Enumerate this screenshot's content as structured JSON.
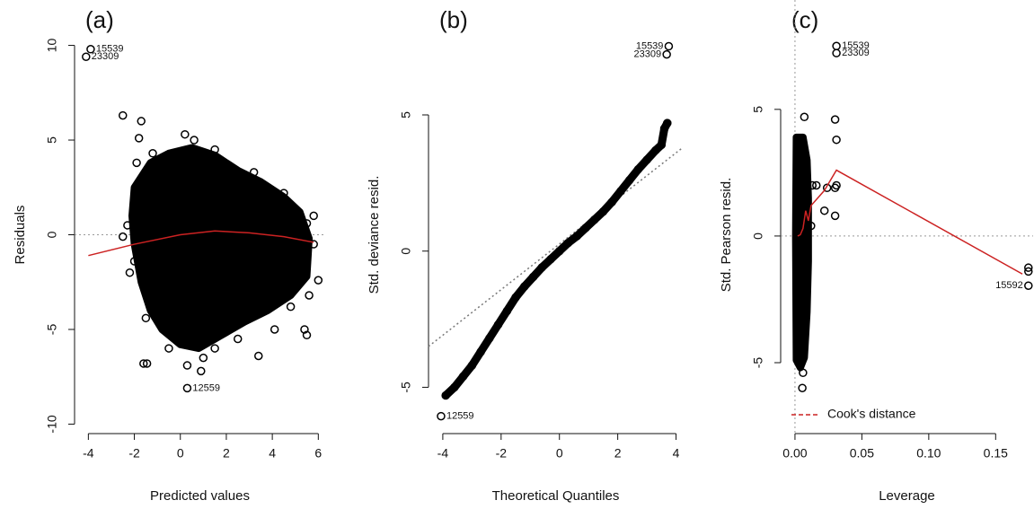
{
  "chart_data": [
    {
      "type": "scatter",
      "title": "(a)",
      "x_label": "Predicted values",
      "y_label": "Residuals",
      "xlim": [
        -4.6,
        6.3
      ],
      "ylim": [
        -10.5,
        10.5
      ],
      "xticks": [
        -4,
        -2,
        0,
        2,
        4,
        6
      ],
      "yticks": [
        -10,
        -5,
        0,
        5,
        10
      ],
      "hline": 0,
      "dense_region": {
        "x": [
          -2.0,
          -1.3,
          -0.5,
          0.5,
          1.5,
          2.5,
          3.5,
          4.5,
          5.2,
          5.6,
          5.5,
          4.8,
          3.8,
          2.8,
          1.8,
          0.8,
          0,
          -0.8,
          -1.3,
          -1.7,
          -2.0,
          -2.1
        ],
        "y": [
          2.5,
          3.8,
          4.3,
          4.6,
          4.2,
          3.4,
          2.8,
          2.0,
          1.2,
          -0.2,
          -2.2,
          -3.2,
          -4.0,
          -4.6,
          -5.3,
          -6.0,
          -5.8,
          -5.0,
          -4.0,
          -2.5,
          -0.5,
          1.0
        ]
      },
      "points": [
        {
          "x": -3.9,
          "y": 9.8,
          "label": "15539"
        },
        {
          "x": -4.1,
          "y": 9.4,
          "label": "23309"
        },
        {
          "x": -2.5,
          "y": 6.3
        },
        {
          "x": -1.7,
          "y": 6.0
        },
        {
          "x": -1.8,
          "y": 5.1
        },
        {
          "x": -1.9,
          "y": 3.8
        },
        {
          "x": -2.3,
          "y": 0.5
        },
        {
          "x": -2.5,
          "y": -0.1
        },
        {
          "x": -2.0,
          "y": -1.4
        },
        {
          "x": -1.4,
          "y": -3.2
        },
        {
          "x": -1.6,
          "y": -6.8
        },
        {
          "x": -1.45,
          "y": -6.8
        },
        {
          "x": -0.2,
          "y": -5.5
        },
        {
          "x": 0.3,
          "y": -6.9
        },
        {
          "x": 0.9,
          "y": -7.2
        },
        {
          "x": 0.3,
          "y": -8.1,
          "label": "12559"
        },
        {
          "x": 3.4,
          "y": -6.4
        },
        {
          "x": 4.1,
          "y": -5.0
        },
        {
          "x": 5.4,
          "y": -5.0
        },
        {
          "x": 5.5,
          "y": -5.3
        },
        {
          "x": 6.0,
          "y": -2.4
        },
        {
          "x": 5.8,
          "y": -0.5
        },
        {
          "x": 5.5,
          "y": 0.6
        },
        {
          "x": 5.8,
          "y": 1.0
        },
        {
          "x": 0.2,
          "y": 5.3
        },
        {
          "x": 0.6,
          "y": 5.0
        },
        {
          "x": 1.5,
          "y": 4.5
        },
        {
          "x": 3.2,
          "y": 3.3
        },
        {
          "x": 4.5,
          "y": 2.2
        },
        {
          "x": -1.2,
          "y": 4.3
        },
        {
          "x": 2.5,
          "y": -5.5
        },
        {
          "x": 1.5,
          "y": -6.0
        },
        {
          "x": -0.5,
          "y": -6.0
        },
        {
          "x": 4.8,
          "y": -3.8
        },
        {
          "x": 5.6,
          "y": -3.2
        },
        {
          "x": -1.5,
          "y": -4.4
        },
        {
          "x": -2.2,
          "y": -2.0
        },
        {
          "x": 1.0,
          "y": -6.5
        }
      ],
      "smooth": {
        "color": "#cc2222",
        "x": [
          -4,
          -2,
          0,
          1.5,
          3,
          4.5,
          5.8
        ],
        "y": [
          -1.1,
          -0.5,
          0,
          0.2,
          0.1,
          -0.1,
          -0.4
        ]
      }
    },
    {
      "type": "qq",
      "title": "(b)",
      "x_label": "Theoretical Quantiles",
      "y_label": "Std. deviance resid.",
      "xlim": [
        -4.49,
        4.23
      ],
      "ylim": [
        -6.7,
        7.9
      ],
      "xticks": [
        -4,
        -2,
        0,
        2,
        4
      ],
      "yticks": [
        -5,
        0,
        5
      ],
      "reference_line": {
        "x": [
          -4.49,
          4.23
        ],
        "y": [
          -3.5,
          3.8
        ]
      },
      "points": [
        {
          "x": -3.9,
          "y": -5.3
        },
        {
          "x": -3.6,
          "y": -5.0
        },
        {
          "x": -3.3,
          "y": -4.6
        },
        {
          "x": -3.0,
          "y": -4.2
        },
        {
          "x": -2.7,
          "y": -3.7
        },
        {
          "x": -2.4,
          "y": -3.2
        },
        {
          "x": -2.1,
          "y": -2.7
        },
        {
          "x": -1.8,
          "y": -2.2
        },
        {
          "x": -1.5,
          "y": -1.7
        },
        {
          "x": -1.2,
          "y": -1.3
        },
        {
          "x": -0.9,
          "y": -0.95
        },
        {
          "x": -0.6,
          "y": -0.6
        },
        {
          "x": -0.3,
          "y": -0.3
        },
        {
          "x": 0,
          "y": 0
        },
        {
          "x": 0.3,
          "y": 0.3
        },
        {
          "x": 0.6,
          "y": 0.55
        },
        {
          "x": 0.9,
          "y": 0.85
        },
        {
          "x": 1.2,
          "y": 1.15
        },
        {
          "x": 1.5,
          "y": 1.45
        },
        {
          "x": 1.8,
          "y": 1.8
        },
        {
          "x": 2.1,
          "y": 2.2
        },
        {
          "x": 2.4,
          "y": 2.6
        },
        {
          "x": 2.7,
          "y": 3.0
        },
        {
          "x": 3.0,
          "y": 3.35
        },
        {
          "x": 3.3,
          "y": 3.7
        },
        {
          "x": 3.5,
          "y": 3.9
        },
        {
          "x": 3.6,
          "y": 4.5
        },
        {
          "x": 3.7,
          "y": 4.7
        },
        {
          "x": 3.75,
          "y": 7.52,
          "label": "15539"
        },
        {
          "x": 3.68,
          "y": 7.22,
          "label": "23309"
        },
        {
          "x": -4.06,
          "y": -6.06,
          "label": "12559"
        }
      ]
    },
    {
      "type": "scatter",
      "title": "(c)",
      "x_label": "Leverage",
      "y_label": "Std. Pearson resid.",
      "xlim": [
        -0.0107,
        0.178
      ],
      "ylim": [
        -7.8,
        7.9
      ],
      "xticks": [
        {
          "value": 0,
          "label": "0.00"
        },
        {
          "value": 0.05,
          "label": "0.05"
        },
        {
          "value": 0.1,
          "label": "0.10"
        },
        {
          "value": 0.15,
          "label": "0.15"
        }
      ],
      "yticks": [
        -5,
        0,
        5
      ],
      "hline": 0,
      "vline": 0,
      "dense_region": {
        "x": [
          0.001,
          0.006,
          0.009,
          0.01,
          0.01,
          0.009,
          0.007,
          0.004,
          0.001,
          0.0005
        ],
        "y": [
          3.9,
          3.9,
          3.0,
          1.5,
          -1,
          -3,
          -4.8,
          -5.2,
          -4.9,
          0
        ]
      },
      "points": [
        {
          "x": 0.0055,
          "y": -6.0
        },
        {
          "x": 0.007,
          "y": 4.7
        },
        {
          "x": 0.013,
          "y": 2.0
        },
        {
          "x": 0.016,
          "y": 2.0
        },
        {
          "x": 0.022,
          "y": 1.0
        },
        {
          "x": 0.024,
          "y": 1.9
        },
        {
          "x": 0.03,
          "y": 4.6
        },
        {
          "x": 0.031,
          "y": 3.8
        },
        {
          "x": 0.031,
          "y": 2.0
        },
        {
          "x": 0.03,
          "y": 1.9
        },
        {
          "x": 0.03,
          "y": 0.8
        },
        {
          "x": 0.031,
          "y": 7.5,
          "label": "15539"
        },
        {
          "x": 0.031,
          "y": 7.22,
          "label": "23309"
        },
        {
          "x": 0.1745,
          "y": -1.96,
          "label": "15592"
        },
        {
          "x": 0.1745,
          "y": -1.25
        },
        {
          "x": 0.1745,
          "y": -1.4
        },
        {
          "x": 0.012,
          "y": 0.4
        },
        {
          "x": 0.006,
          "y": -5.4
        }
      ],
      "smooth": {
        "color": "#cc2222",
        "x": [
          0.002,
          0.004,
          0.006,
          0.008,
          0.01,
          0.012,
          0.022,
          0.031,
          0.17
        ],
        "y": [
          0.0,
          0.05,
          0.3,
          1.0,
          0.6,
          1.2,
          1.8,
          2.6,
          -1.5
        ]
      },
      "legend": {
        "name": "Cook's distance",
        "color": "#cc2222"
      }
    }
  ]
}
